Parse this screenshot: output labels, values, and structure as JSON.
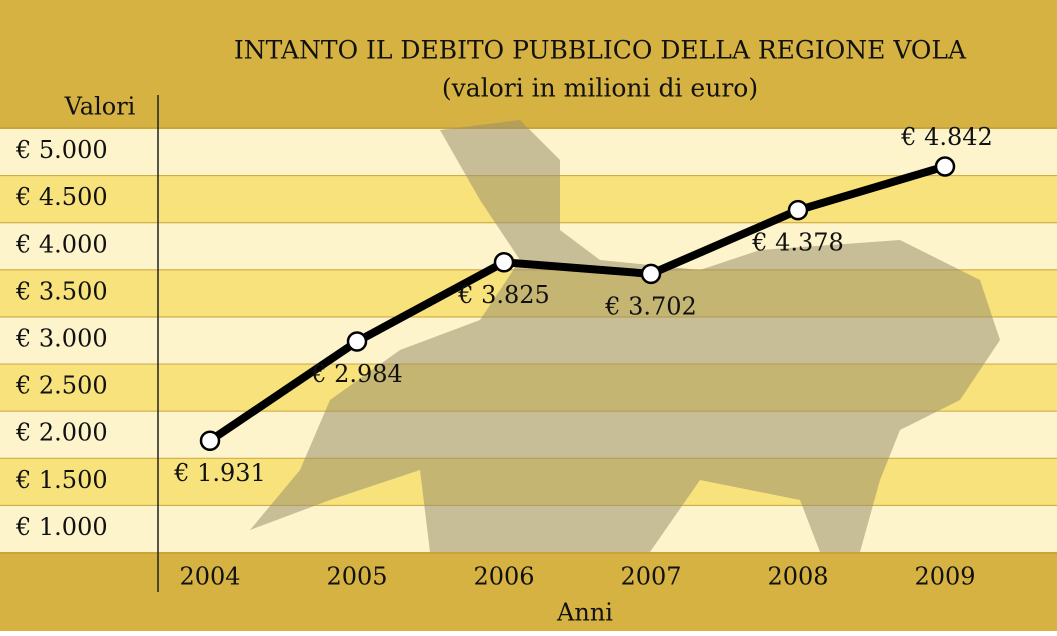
{
  "chart_data": {
    "type": "line",
    "title": "INTANTO IL DEBITO PUBBLICO DELLA REGIONE VOLA",
    "subtitle": "(valori in milioni di euro)",
    "y_label": "Valori",
    "x_label": "Anni",
    "categories": [
      "2004",
      "2005",
      "2006",
      "2007",
      "2008",
      "2009"
    ],
    "series": [
      {
        "color": "#000000",
        "values": [
          1931,
          2984,
          3825,
          3702,
          4378,
          4842
        ],
        "value_labels": [
          "€ 1.931",
          "€ 2.984",
          "€ 3.825",
          "€ 3.702",
          "€ 4.378",
          "€ 4.842"
        ]
      }
    ],
    "ylim": [
      750,
      5250
    ],
    "yticks": [
      {
        "value": 1000,
        "label": "€ 1.000"
      },
      {
        "value": 1500,
        "label": "€ 1.500"
      },
      {
        "value": 2000,
        "label": "€ 2.000"
      },
      {
        "value": 2500,
        "label": "€ 2.500"
      },
      {
        "value": 3000,
        "label": "€ 3.000"
      },
      {
        "value": 3500,
        "label": "€ 3.500"
      },
      {
        "value": 4000,
        "label": "€ 4.000"
      },
      {
        "value": 4500,
        "label": "€ 4.500"
      },
      {
        "value": 5000,
        "label": "€ 5.000"
      }
    ],
    "grid": true
  }
}
